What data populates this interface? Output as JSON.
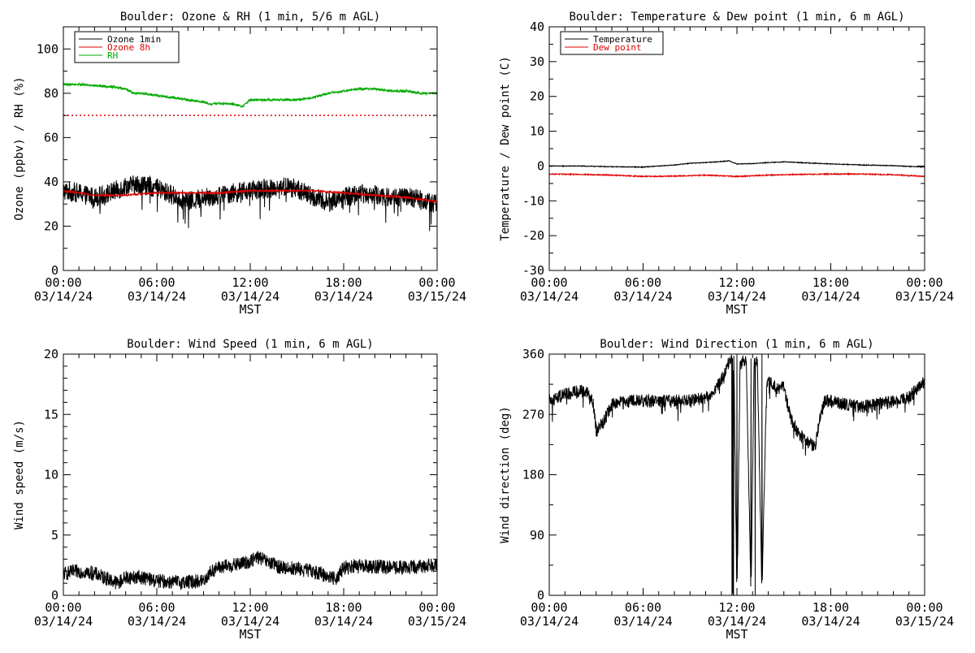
{
  "chart_data": [
    {
      "type": "line",
      "title": "Boulder: Ozone & RH (1 min, 5/6 m AGL)",
      "xlabel": "MST",
      "ylabel": "Ozone (ppbv) / RH (%)",
      "xlim": [
        0,
        24
      ],
      "ylim": [
        0,
        110
      ],
      "yticks": [
        0,
        20,
        40,
        60,
        80,
        100
      ],
      "xticks": [
        {
          "hour": 0,
          "time": "00:00",
          "date": "03/14/24"
        },
        {
          "hour": 6,
          "time": "06:00",
          "date": "03/14/24"
        },
        {
          "hour": 12,
          "time": "12:00",
          "date": "03/14/24"
        },
        {
          "hour": 18,
          "time": "18:00",
          "date": "03/14/24"
        },
        {
          "hour": 24,
          "time": "00:00",
          "date": "03/15/24"
        }
      ],
      "legend_position": "top-left",
      "reference_line": {
        "y": 70,
        "color": "#dd0000",
        "style": "dotted"
      },
      "series": [
        {
          "name": "Ozone 1min",
          "color": "#000000",
          "noise": 4.5,
          "x": [
            0,
            1,
            2,
            3,
            4,
            5,
            6,
            7,
            8,
            9,
            10,
            11,
            12,
            13,
            14,
            15,
            16,
            17,
            18,
            19,
            20,
            21,
            22,
            23,
            24
          ],
          "y": [
            36,
            35,
            33,
            35,
            38,
            39,
            37,
            34,
            31,
            33,
            34,
            35,
            36,
            37,
            38,
            37,
            33,
            31,
            33,
            35,
            34,
            33,
            33,
            32,
            30
          ]
        },
        {
          "name": "Ozone 8h",
          "color": "#dd0000",
          "noise": 0.4,
          "x": [
            0,
            2,
            4,
            6,
            8,
            10,
            12,
            14,
            16,
            18,
            20,
            22,
            24
          ],
          "y": [
            36,
            34,
            34,
            35,
            35,
            35,
            36,
            36,
            36,
            35,
            34,
            33,
            31
          ]
        },
        {
          "name": "RH",
          "color": "#00aa00",
          "noise": 0.5,
          "x": [
            0,
            1,
            2,
            3,
            4,
            4.5,
            5,
            6,
            7,
            8,
            9,
            9.5,
            10,
            11,
            11.5,
            12,
            13,
            14,
            15,
            16,
            17,
            18,
            19,
            20,
            21,
            22,
            23,
            24
          ],
          "y": [
            84,
            84,
            83.5,
            83,
            82,
            80,
            80,
            79,
            78,
            77,
            76,
            75,
            75.5,
            75,
            74,
            77,
            77,
            77,
            77,
            78,
            80,
            81,
            82,
            82,
            81,
            81,
            80,
            80
          ]
        }
      ]
    },
    {
      "type": "line",
      "title": "Boulder: Temperature & Dew point (1 min, 6 m AGL)",
      "xlabel": "MST",
      "ylabel": "Temperature / Dew point (C)",
      "xlim": [
        0,
        24
      ],
      "ylim": [
        -30,
        40
      ],
      "yticks": [
        -30,
        -20,
        -10,
        0,
        10,
        20,
        30,
        40
      ],
      "xticks": [
        {
          "hour": 0,
          "time": "00:00",
          "date": "03/14/24"
        },
        {
          "hour": 6,
          "time": "06:00",
          "date": "03/14/24"
        },
        {
          "hour": 12,
          "time": "12:00",
          "date": "03/14/24"
        },
        {
          "hour": 18,
          "time": "18:00",
          "date": "03/14/24"
        },
        {
          "hour": 24,
          "time": "00:00",
          "date": "03/15/24"
        }
      ],
      "legend_position": "top-left",
      "series": [
        {
          "name": "Temperature",
          "color": "#000000",
          "noise": 0.1,
          "x": [
            0,
            2,
            4,
            6,
            8,
            9,
            10,
            11,
            11.5,
            12,
            13,
            14,
            15,
            16,
            18,
            20,
            22,
            24
          ],
          "y": [
            0,
            0,
            -0.2,
            -0.3,
            0.3,
            0.8,
            1,
            1.3,
            1.5,
            0.6,
            0.7,
            1,
            1.2,
            1,
            0.6,
            0.3,
            0.1,
            -0.3
          ]
        },
        {
          "name": "Dew point",
          "color": "#dd0000",
          "noise": 0.15,
          "x": [
            0,
            2,
            4,
            6,
            8,
            10,
            12,
            14,
            16,
            18,
            20,
            22,
            24
          ],
          "y": [
            -2.3,
            -2.4,
            -2.6,
            -3,
            -2.9,
            -2.6,
            -3,
            -2.6,
            -2.4,
            -2.3,
            -2.3,
            -2.5,
            -3
          ]
        }
      ]
    },
    {
      "type": "line",
      "title": "Boulder: Wind Speed (1 min, 6 m AGL)",
      "xlabel": "MST",
      "ylabel": "Wind speed (m/s)",
      "xlim": [
        0,
        24
      ],
      "ylim": [
        0,
        20
      ],
      "yticks": [
        0,
        5,
        10,
        15,
        20
      ],
      "xticks": [
        {
          "hour": 0,
          "time": "00:00",
          "date": "03/14/24"
        },
        {
          "hour": 6,
          "time": "06:00",
          "date": "03/14/24"
        },
        {
          "hour": 12,
          "time": "12:00",
          "date": "03/14/24"
        },
        {
          "hour": 18,
          "time": "18:00",
          "date": "03/14/24"
        },
        {
          "hour": 24,
          "time": "00:00",
          "date": "03/15/24"
        }
      ],
      "legend_position": "none",
      "series": [
        {
          "name": "",
          "color": "#000000",
          "noise": 0.6,
          "x": [
            0,
            1,
            2,
            3,
            3.5,
            4,
            5,
            6,
            7,
            8,
            9,
            9.5,
            10,
            11,
            12,
            12.5,
            13,
            14,
            15,
            16,
            17,
            17.5,
            18,
            19,
            20,
            21,
            22,
            23,
            24
          ],
          "y": [
            1.8,
            2,
            1.8,
            1.3,
            1,
            1.5,
            1.5,
            1.2,
            1.1,
            1.1,
            1.2,
            2,
            2.3,
            2.5,
            2.8,
            3.2,
            2.8,
            2.3,
            2.2,
            2,
            1.6,
            1.4,
            2.3,
            2.4,
            2.4,
            2.3,
            2.3,
            2.4,
            2.6
          ]
        }
      ]
    },
    {
      "type": "line",
      "title": "Boulder: Wind Direction (1 min, 6 m AGL)",
      "xlabel": "MST",
      "ylabel": "Wind direction (deg)",
      "xlim": [
        0,
        24
      ],
      "ylim": [
        0,
        360
      ],
      "yticks": [
        0,
        90,
        180,
        270,
        360
      ],
      "xticks": [
        {
          "hour": 0,
          "time": "00:00",
          "date": "03/14/24"
        },
        {
          "hour": 6,
          "time": "06:00",
          "date": "03/14/24"
        },
        {
          "hour": 12,
          "time": "12:00",
          "date": "03/14/24"
        },
        {
          "hour": 18,
          "time": "18:00",
          "date": "03/14/24"
        },
        {
          "hour": 24,
          "time": "00:00",
          "date": "03/15/24"
        }
      ],
      "legend_position": "none",
      "series": [
        {
          "name": "",
          "color": "#000000",
          "noise": 10,
          "x": [
            0,
            1,
            2,
            2.5,
            2.8,
            3,
            3.5,
            4,
            5,
            6,
            7,
            8,
            9,
            10,
            10.5,
            11,
            11.5,
            11.8,
            12,
            12.2,
            12.4,
            12.6,
            12.9,
            13.1,
            13.3,
            13.6,
            13.9,
            14.5,
            15,
            15.5,
            16,
            16.5,
            17,
            17.3,
            17.6,
            18,
            19,
            20,
            21,
            22,
            23,
            24
          ],
          "y": [
            290,
            300,
            305,
            300,
            290,
            245,
            260,
            285,
            290,
            290,
            290,
            290,
            290,
            295,
            305,
            320,
            350,
            355,
            0,
            345,
            350,
            350,
            0,
            355,
            350,
            0,
            320,
            310,
            310,
            260,
            240,
            230,
            220,
            265,
            290,
            290,
            285,
            280,
            285,
            290,
            295,
            320
          ]
        }
      ]
    }
  ]
}
